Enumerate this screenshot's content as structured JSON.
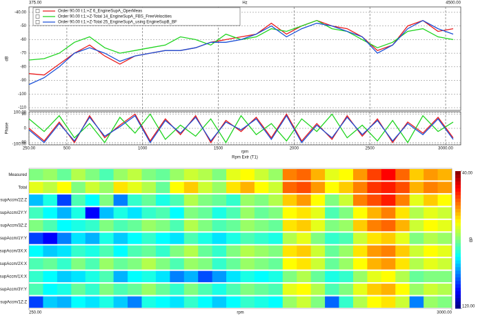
{
  "chart_data": [
    {
      "type": "line",
      "x2ticks": [
        {
          "value": 375,
          "label": "375.00"
        },
        {
          "value": 4500,
          "label": "4500.00"
        }
      ],
      "x2label": "Hz",
      "ylabel": "dB",
      "xlim": [
        250,
        3100
      ],
      "ylim": [
        -112,
        -36
      ],
      "yticks": [
        {
          "value": -40,
          "label": "-40.00"
        },
        -50,
        -60,
        -70,
        -80,
        -90,
        -100,
        -110
      ],
      "x": [
        250,
        350,
        450,
        550,
        650,
        750,
        850,
        950,
        1050,
        1150,
        1250,
        1350,
        1450,
        1550,
        1650,
        1750,
        1850,
        1950,
        2050,
        2150,
        2250,
        2350,
        2450,
        2550,
        2650,
        2750,
        2850,
        2950,
        3050
      ],
      "series": [
        {
          "name": "Order 90.00 t:1:+Z 6_EngineSupA_OperMeas",
          "color": "#e8191c",
          "values": [
            -85,
            -86,
            -78,
            -70,
            -64,
            -72,
            -78,
            -72,
            -70,
            -68,
            -68,
            -66,
            -62,
            -60,
            -58,
            -56,
            -48,
            -56,
            -50,
            -46,
            -50,
            -52,
            -58,
            -68,
            -64,
            -50,
            -46,
            -54,
            -52
          ]
        },
        {
          "name": "Order 90.00 t:1:+Z-Total 14_EngineSupA_FBS_FreeVelocities",
          "color": "#1fd41f",
          "values": [
            -75,
            -74,
            -70,
            -62,
            -58,
            -66,
            -70,
            -68,
            -66,
            -64,
            -58,
            -60,
            -64,
            -56,
            -60,
            -58,
            -52,
            -54,
            -50,
            -46,
            -52,
            -54,
            -60,
            -66,
            -62,
            -54,
            -52,
            -58,
            -60
          ]
        },
        {
          "name": "Order 90.00 t:1:+Z-Total 25_EngineSupA_using EngineSupB_BF",
          "color": "#1a4fd6",
          "values": [
            -93,
            -88,
            -80,
            -70,
            -66,
            -70,
            -76,
            -72,
            -70,
            -68,
            -68,
            -66,
            -62,
            -62,
            -60,
            -56,
            -50,
            -58,
            -52,
            -48,
            -50,
            -54,
            -58,
            -70,
            -64,
            -52,
            -46,
            -52,
            -56
          ]
        }
      ],
      "legend": "top-left",
      "grid": true
    },
    {
      "type": "line",
      "ylabel": "Phase",
      "xlabel": "rpm",
      "xsublabel": "Rpm Extr (T1)",
      "xlim": [
        250,
        3100
      ],
      "ylim": [
        -105,
        105
      ],
      "yticks": [
        {
          "value": 100,
          "label": "100.00"
        },
        90,
        0,
        -90,
        {
          "value": -100,
          "label": "-100.00"
        }
      ],
      "xticks": [
        {
          "value": 250,
          "label": "250.00"
        },
        500,
        1000,
        1500,
        2000,
        2500,
        {
          "value": 3000,
          "label": "3000.00"
        }
      ],
      "x": [
        250,
        350,
        450,
        550,
        650,
        750,
        850,
        950,
        1050,
        1150,
        1250,
        1350,
        1450,
        1550,
        1650,
        1750,
        1850,
        1950,
        2050,
        2150,
        2250,
        2350,
        2450,
        2550,
        2650,
        2750,
        2850,
        2950,
        3050
      ],
      "series": [
        {
          "color": "#e8191c",
          "values": [
            0,
            -80,
            40,
            -90,
            80,
            -60,
            20,
            90,
            -80,
            60,
            -40,
            80,
            -90,
            50,
            -20,
            70,
            -60,
            90,
            -80,
            30,
            -70,
            80,
            -50,
            60,
            -90,
            40,
            -30,
            70,
            -60
          ]
        },
        {
          "color": "#1fd41f",
          "values": [
            60,
            -20,
            80,
            -60,
            30,
            -90,
            70,
            -30,
            90,
            -70,
            20,
            -50,
            60,
            -90,
            80,
            -40,
            30,
            -80,
            60,
            -20,
            90,
            -60,
            20,
            -80,
            50,
            -90,
            80,
            -20,
            40
          ]
        },
        {
          "color": "#1a4fd6",
          "values": [
            -10,
            -90,
            30,
            -80,
            70,
            -50,
            10,
            80,
            -90,
            50,
            -30,
            70,
            -80,
            40,
            -10,
            60,
            -70,
            80,
            -90,
            20,
            -60,
            70,
            -40,
            50,
            -80,
            30,
            -40,
            60,
            -70
          ]
        }
      ],
      "grid": true
    },
    {
      "type": "heatmap",
      "xlabel": "rpm",
      "xlim": [
        250,
        3000
      ],
      "xticks": [
        {
          "value": 250,
          "label": "250.00"
        },
        {
          "value": 3000,
          "label": "3000.00"
        }
      ],
      "zlim": [
        40,
        120
      ],
      "colormap": "jet",
      "reverse": true,
      "colorbar_label": "dB",
      "colorbar_ticks": [
        {
          "value": 40,
          "label": "40.00"
        },
        {
          "value": 120,
          "label": "120.00"
        }
      ],
      "rows": [
        {
          "name": "Measured",
          "values": [
            80,
            78,
            82,
            76,
            80,
            84,
            78,
            75,
            80,
            82,
            78,
            74,
            76,
            80,
            72,
            70,
            74,
            78,
            60,
            58,
            64,
            72,
            70,
            62,
            55,
            50,
            58,
            66,
            62,
            64
          ]
        },
        {
          "name": "Total",
          "values": [
            72,
            75,
            70,
            80,
            74,
            78,
            68,
            72,
            76,
            82,
            70,
            66,
            74,
            78,
            68,
            64,
            70,
            74,
            58,
            56,
            62,
            70,
            66,
            60,
            54,
            52,
            56,
            64,
            60,
            62
          ]
        },
        {
          "name": "supAccm/2Z:Z",
          "values": [
            95,
            88,
            105,
            84,
            90,
            80,
            100,
            86,
            82,
            88,
            84,
            76,
            80,
            82,
            86,
            78,
            80,
            76,
            66,
            62,
            70,
            80,
            74,
            60,
            56,
            52,
            60,
            72,
            66,
            70
          ]
        },
        {
          "name": "supAccm/2Y:Y",
          "values": [
            85,
            90,
            96,
            88,
            110,
            95,
            88,
            92,
            86,
            84,
            90,
            80,
            82,
            88,
            84,
            78,
            82,
            80,
            70,
            68,
            72,
            84,
            80,
            70,
            64,
            60,
            68,
            76,
            72,
            74
          ]
        },
        {
          "name": "supAccm/3Z:Z",
          "values": [
            80,
            84,
            90,
            88,
            86,
            80,
            84,
            82,
            78,
            80,
            84,
            76,
            80,
            84,
            82,
            78,
            80,
            82,
            68,
            66,
            72,
            80,
            78,
            66,
            60,
            58,
            64,
            74,
            70,
            72
          ]
        },
        {
          "name": "supAccm/1Y:Y",
          "values": [
            105,
            110,
            100,
            92,
            96,
            88,
            94,
            90,
            86,
            90,
            92,
            84,
            88,
            92,
            88,
            84,
            86,
            88,
            76,
            72,
            80,
            86,
            84,
            74,
            68,
            66,
            72,
            80,
            76,
            78
          ]
        },
        {
          "name": "supAccm/3X:X",
          "values": [
            90,
            94,
            92,
            86,
            88,
            84,
            90,
            84,
            82,
            86,
            80,
            76,
            82,
            86,
            80,
            76,
            78,
            80,
            68,
            66,
            74,
            82,
            78,
            68,
            62,
            60,
            66,
            74,
            70,
            72
          ]
        },
        {
          "name": "supAccm/2X:X",
          "values": [
            84,
            82,
            86,
            80,
            84,
            78,
            82,
            80,
            76,
            80,
            84,
            78,
            80,
            86,
            82,
            78,
            80,
            82,
            70,
            68,
            74,
            82,
            78,
            70,
            64,
            62,
            68,
            76,
            72,
            74
          ]
        },
        {
          "name": "supAccm/1X:X",
          "values": [
            86,
            90,
            94,
            92,
            88,
            84,
            96,
            90,
            88,
            92,
            100,
            96,
            104,
            98,
            92,
            88,
            90,
            88,
            80,
            76,
            82,
            88,
            86,
            78,
            72,
            70,
            76,
            82,
            80,
            80
          ]
        },
        {
          "name": "supAccm/3Y:Y",
          "values": [
            84,
            90,
            88,
            82,
            86,
            80,
            84,
            82,
            78,
            82,
            86,
            80,
            84,
            88,
            84,
            80,
            82,
            84,
            72,
            70,
            76,
            84,
            80,
            72,
            66,
            64,
            70,
            78,
            74,
            76
          ]
        },
        {
          "name": "supAccm/1Z:Z",
          "values": [
            105,
            94,
            96,
            90,
            92,
            88,
            94,
            100,
            88,
            90,
            92,
            86,
            90,
            94,
            90,
            86,
            88,
            90,
            78,
            74,
            80,
            102,
            86,
            76,
            70,
            68,
            74,
            100,
            78,
            80
          ]
        }
      ]
    }
  ]
}
